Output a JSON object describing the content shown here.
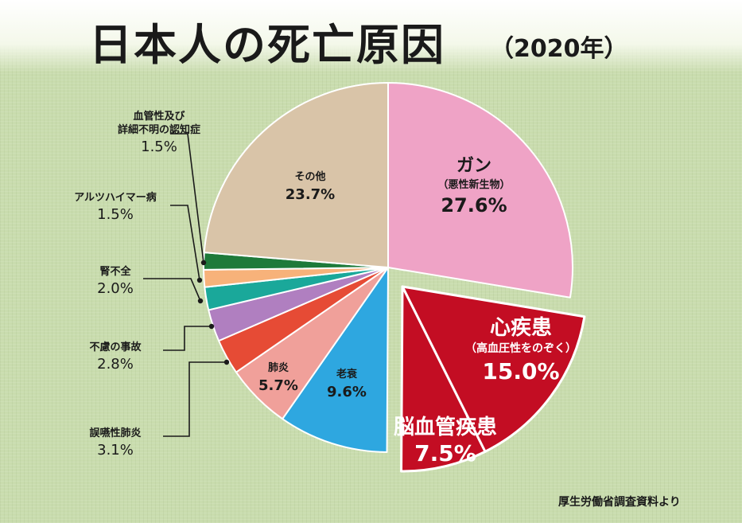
{
  "header": {
    "title": "日本人の死亡原因",
    "subtitle": "（2020年）"
  },
  "source": "厚生労働省調査資料より",
  "chart_data": {
    "type": "pie",
    "title": "日本人の死亡原因",
    "subtitle": "（2020年）",
    "unit": "%",
    "slices": [
      {
        "id": "cancer",
        "name": "ガン",
        "sub": "（悪性新生物）",
        "value": 27.6,
        "value_label": "27.6%",
        "color": "#efa3c6",
        "exploded": false
      },
      {
        "id": "heart",
        "name": "心疾患",
        "sub": "（高血圧性をのぞく）",
        "value": 15.0,
        "value_label": "15.0%",
        "color": "#c30d23",
        "exploded": true
      },
      {
        "id": "stroke",
        "name": "脳血管疾患",
        "sub": "",
        "value": 7.5,
        "value_label": "7.5%",
        "color": "#c30d23",
        "exploded": true
      },
      {
        "id": "senility",
        "name": "老衰",
        "sub": "",
        "value": 9.6,
        "value_label": "9.6%",
        "color": "#2ea7e0",
        "exploded": false
      },
      {
        "id": "pneumonia",
        "name": "肺炎",
        "sub": "",
        "value": 5.7,
        "value_label": "5.7%",
        "color": "#f0a09a",
        "exploded": false
      },
      {
        "id": "aspiration",
        "name": "誤嚥性肺炎",
        "sub": "",
        "value": 3.1,
        "value_label": "3.1%",
        "color": "#e64b35",
        "exploded": false
      },
      {
        "id": "accident",
        "name": "不慮の事故",
        "sub": "",
        "value": 2.8,
        "value_label": "2.8%",
        "color": "#b07fc0",
        "exploded": false
      },
      {
        "id": "kidney",
        "name": "腎不全",
        "sub": "",
        "value": 2.0,
        "value_label": "2.0%",
        "color": "#1aa89a",
        "exploded": false
      },
      {
        "id": "alzheimer",
        "name": "アルツハイマー病",
        "sub": "",
        "value": 1.5,
        "value_label": "1.5%",
        "color": "#f7b27a",
        "exploded": false
      },
      {
        "id": "vascular_dementia",
        "name": "血管性及び\n詳細不明の認知症",
        "sub": "",
        "value": 1.5,
        "value_label": "1.5%",
        "color": "#1e7a3a",
        "exploded": false
      },
      {
        "id": "other",
        "name": "その他",
        "sub": "",
        "value": 23.7,
        "value_label": "23.7%",
        "color": "#d9c4a8",
        "exploded": false
      }
    ]
  }
}
